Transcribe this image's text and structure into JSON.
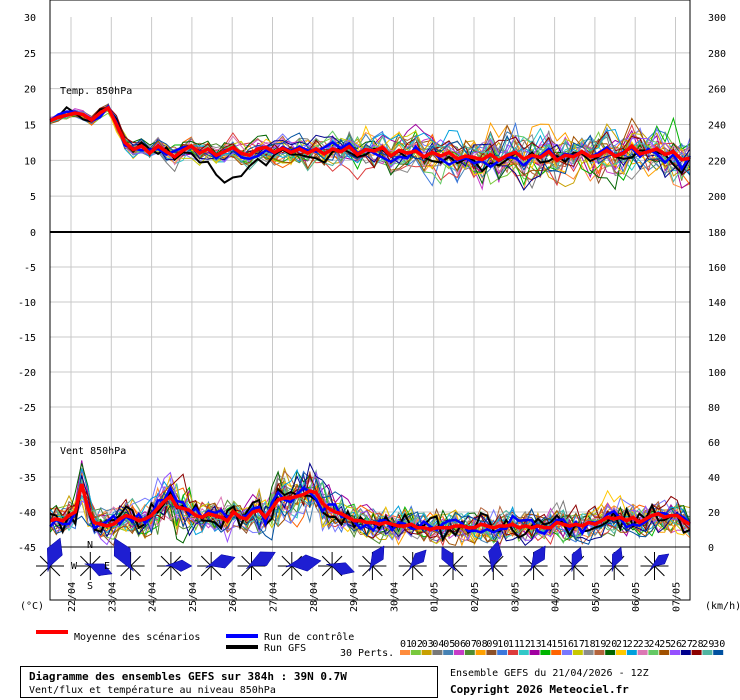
{
  "chart_data": {
    "type": "line",
    "panels": [
      {
        "name": "Temp. 850hPa",
        "left_axis": {
          "ticks": [
            30,
            25,
            20,
            15,
            10,
            5,
            0
          ],
          "range": [
            0,
            30
          ]
        },
        "right_axis": {
          "ticks": [
            300,
            280,
            260,
            240,
            220,
            200,
            180
          ]
        },
        "series_mean": [
          15.5,
          16.0,
          16.3,
          16.6,
          16.4,
          15.6,
          16.6,
          17.3,
          15.0,
          12.5,
          11.5,
          12.0,
          11.0,
          12.0,
          11.2,
          10.5,
          11.4,
          12.0,
          11.0,
          11.6,
          10.7,
          11.2,
          11.8,
          11.0,
          10.7,
          11.6,
          11.8,
          11.1,
          11.7,
          11.1,
          11.6,
          11.0,
          11.6,
          10.9,
          11.6,
          11.2,
          11.9,
          10.8,
          11.5,
          11.3,
          11.8,
          10.6,
          11.4,
          11.0,
          11.3,
          10.5,
          11.1,
          10.6,
          11.1,
          10.2,
          10.6,
          10.4,
          10.1,
          10.8,
          10.0,
          10.7,
          11.1,
          10.2,
          10.7,
          10.4,
          11.2,
          10.0,
          10.7,
          10.5,
          11.2,
          10.5,
          10.7,
          11.4,
          10.6,
          11.0,
          12.0,
          10.9,
          11.2,
          11.6,
          10.8,
          11.2,
          10.1,
          10.3
        ],
        "series_control": [
          15.5,
          16.4,
          16.8,
          16.8,
          16.3,
          15.5,
          16.0,
          17.5,
          15.3,
          12.1,
          11.7,
          11.4,
          11.5,
          11.6,
          10.8,
          11.3,
          11.8,
          11.9,
          11.2,
          11.5,
          10.3,
          11.4,
          11.7,
          10.4,
          10.2,
          10.6,
          11.4,
          11.0,
          11.9,
          11.3,
          11.9,
          11.4,
          11.2,
          11.8,
          12.5,
          11.7,
          12.4,
          11.0,
          11.6,
          11.0,
          10.4,
          9.8,
          10.5,
          10.3,
          11.9,
          10.5,
          11.2,
          10.2,
          9.4,
          10.0,
          10.3,
          9.6,
          9.9,
          9.1,
          9.9,
          10.5,
          10.3,
          9.3,
          10.4,
          10.6,
          11.6,
          10.1,
          10.9,
          10.6,
          11.3,
          10.5,
          11.0,
          11.8,
          10.6,
          11.2,
          11.7,
          10.5,
          11.6,
          10.9,
          9.7,
          10.8,
          8.8,
          10.6
        ],
        "series_gfs": [
          15.5,
          16.1,
          17.4,
          16.6,
          15.7,
          15.4,
          17.1,
          17.2,
          15.7,
          12.5,
          11.2,
          12.5,
          11.6,
          10.9,
          11.8,
          10.1,
          11.1,
          11.0,
          9.7,
          9.8,
          8.0,
          6.9,
          7.6,
          7.8,
          9.2,
          10.2,
          9.3,
          10.8,
          11.5,
          10.8,
          10.8,
          10.5,
          10.3,
          9.7,
          11.2,
          11.7,
          11.1,
          10.5,
          10.8,
          11.6,
          11.5,
          10.5,
          11.2,
          10.3,
          11.5,
          10.4,
          9.9,
          9.7,
          10.5,
          9.6,
          10.2,
          10.0,
          8.5,
          9.6,
          9.3,
          10.1,
          11.0,
          10.1,
          11.1,
          9.7,
          9.9,
          10.6,
          9.8,
          11.1,
          10.9,
          9.9,
          10.5,
          11.4,
          10.5,
          10.2,
          10.4,
          11.4,
          11.3,
          11.1,
          10.8,
          9.4,
          8.2,
          10.4
        ]
      },
      {
        "name": "Vent 850hPa",
        "left_axis": {
          "ticks": [
            0,
            -5,
            -10,
            -15,
            -20,
            -25,
            -30,
            -35,
            -40,
            -45
          ],
          "range": [
            -45,
            0
          ]
        },
        "right_axis": {
          "ticks": [
            180,
            160,
            140,
            120,
            100,
            80,
            60,
            40,
            20,
            0
          ],
          "unit_range_kmh": [
            0,
            180
          ]
        },
        "series_mean_kmh": [
          15,
          16,
          15,
          18,
          20,
          36,
          22,
          14,
          13,
          12,
          13,
          16,
          18,
          17,
          15,
          16,
          18,
          22,
          26,
          29,
          23,
          22,
          21,
          18,
          17,
          19,
          18,
          17,
          15,
          20,
          17,
          16,
          20,
          21,
          17,
          22,
          27,
          28,
          28,
          29,
          30,
          32,
          31,
          25,
          22,
          20,
          19,
          17,
          15,
          15,
          14,
          14,
          13,
          14,
          13,
          12,
          12,
          13,
          11,
          11,
          10,
          11,
          11,
          11,
          12,
          12,
          11,
          11,
          13,
          12,
          11,
          12,
          12,
          13,
          11,
          12,
          11,
          12,
          11,
          11,
          14,
          13,
          12,
          13,
          12,
          14,
          13,
          15,
          17,
          16,
          17,
          15,
          17,
          14,
          16,
          18,
          19,
          17,
          18,
          18,
          15,
          13
        ]
      }
    ],
    "x_categories": [
      "22/04",
      "23/04",
      "24/04",
      "25/04",
      "26/04",
      "27/04",
      "28/04",
      "29/04",
      "30/04",
      "01/05",
      "02/05",
      "03/05",
      "04/05",
      "05/05",
      "06/05",
      "07/05"
    ],
    "left_unit": "(°C)",
    "right_unit": "(km/h)",
    "wind_labels": {
      "n": "N",
      "w": "W",
      "e": "E",
      "s": "S"
    },
    "legend": {
      "mean": {
        "label": "Moyenne des scénarios",
        "color": "#ff0000"
      },
      "control": {
        "label": "Run de contrôle",
        "color": "#0000ff"
      },
      "gfs": {
        "label": "Run GFS",
        "color": "#000000"
      },
      "perts_label": "30 Perts.",
      "perts": [
        {
          "n": "01",
          "color": "#ff8c3c"
        },
        {
          "n": "02",
          "color": "#78c83c"
        },
        {
          "n": "03",
          "color": "#c8a000"
        },
        {
          "n": "04",
          "color": "#787878"
        },
        {
          "n": "05",
          "color": "#4682b4"
        },
        {
          "n": "06",
          "color": "#c83cc8"
        },
        {
          "n": "07",
          "color": "#508c32"
        },
        {
          "n": "08",
          "color": "#ffa000"
        },
        {
          "n": "09",
          "color": "#8c5028"
        },
        {
          "n": "10",
          "color": "#3c78dc"
        },
        {
          "n": "11",
          "color": "#dc3c3c"
        },
        {
          "n": "12",
          "color": "#32c8c8"
        },
        {
          "n": "13",
          "color": "#a000a0"
        },
        {
          "n": "14",
          "color": "#00b400"
        },
        {
          "n": "15",
          "color": "#ff6400"
        },
        {
          "n": "16",
          "color": "#7878ff"
        },
        {
          "n": "17",
          "color": "#c8c800"
        },
        {
          "n": "18",
          "color": "#8c8c8c"
        },
        {
          "n": "19",
          "color": "#b4643c"
        },
        {
          "n": "20",
          "color": "#006400"
        },
        {
          "n": "21",
          "color": "#ffc800"
        },
        {
          "n": "22",
          "color": "#00a0dc"
        },
        {
          "n": "23",
          "color": "#dc78b4"
        },
        {
          "n": "24",
          "color": "#64c864"
        },
        {
          "n": "25",
          "color": "#a05000"
        },
        {
          "n": "26",
          "color": "#9650ff"
        },
        {
          "n": "27",
          "color": "#00008c"
        },
        {
          "n": "28",
          "color": "#8c0000"
        },
        {
          "n": "29",
          "color": "#50b4a0"
        },
        {
          "n": "30",
          "color": "#0050a0"
        }
      ]
    },
    "wind_roses": [
      {
        "date": "22/04",
        "dir_deg": 200,
        "strength": 0.9
      },
      {
        "date": "23/04",
        "dir_deg": 290,
        "strength": 0.6
      },
      {
        "date": "24/04",
        "dir_deg": 150,
        "strength": 1.0
      },
      {
        "date": "25/04",
        "dir_deg": 270,
        "strength": 0.5
      },
      {
        "date": "26/04",
        "dir_deg": 250,
        "strength": 0.7
      },
      {
        "date": "27/04",
        "dir_deg": 240,
        "strength": 0.8
      },
      {
        "date": "28/04",
        "dir_deg": 260,
        "strength": 0.9
      },
      {
        "date": "29/04",
        "dir_deg": 285,
        "strength": 0.6
      },
      {
        "date": "30/04",
        "dir_deg": 210,
        "strength": 0.6
      },
      {
        "date": "01/05",
        "dir_deg": 220,
        "strength": 0.5
      },
      {
        "date": "02/05",
        "dir_deg": 150,
        "strength": 0.55
      },
      {
        "date": "03/05",
        "dir_deg": 190,
        "strength": 0.7
      },
      {
        "date": "04/05",
        "dir_deg": 210,
        "strength": 0.6
      },
      {
        "date": "05/05",
        "dir_deg": 200,
        "strength": 0.45
      },
      {
        "date": "06/05",
        "dir_deg": 200,
        "strength": 0.45
      },
      {
        "date": "07/05",
        "dir_deg": 230,
        "strength": 0.4
      }
    ]
  },
  "caption": {
    "title": "Diagramme des ensembles GEFS sur 384h : 39N 0.7W",
    "subtitle": "Vent/flux et température au niveau 850hPa"
  },
  "info": {
    "run": "Ensemble GEFS du 21/04/2026 - 12Z",
    "copyright": "Copyright 2026 Meteociel.fr"
  }
}
